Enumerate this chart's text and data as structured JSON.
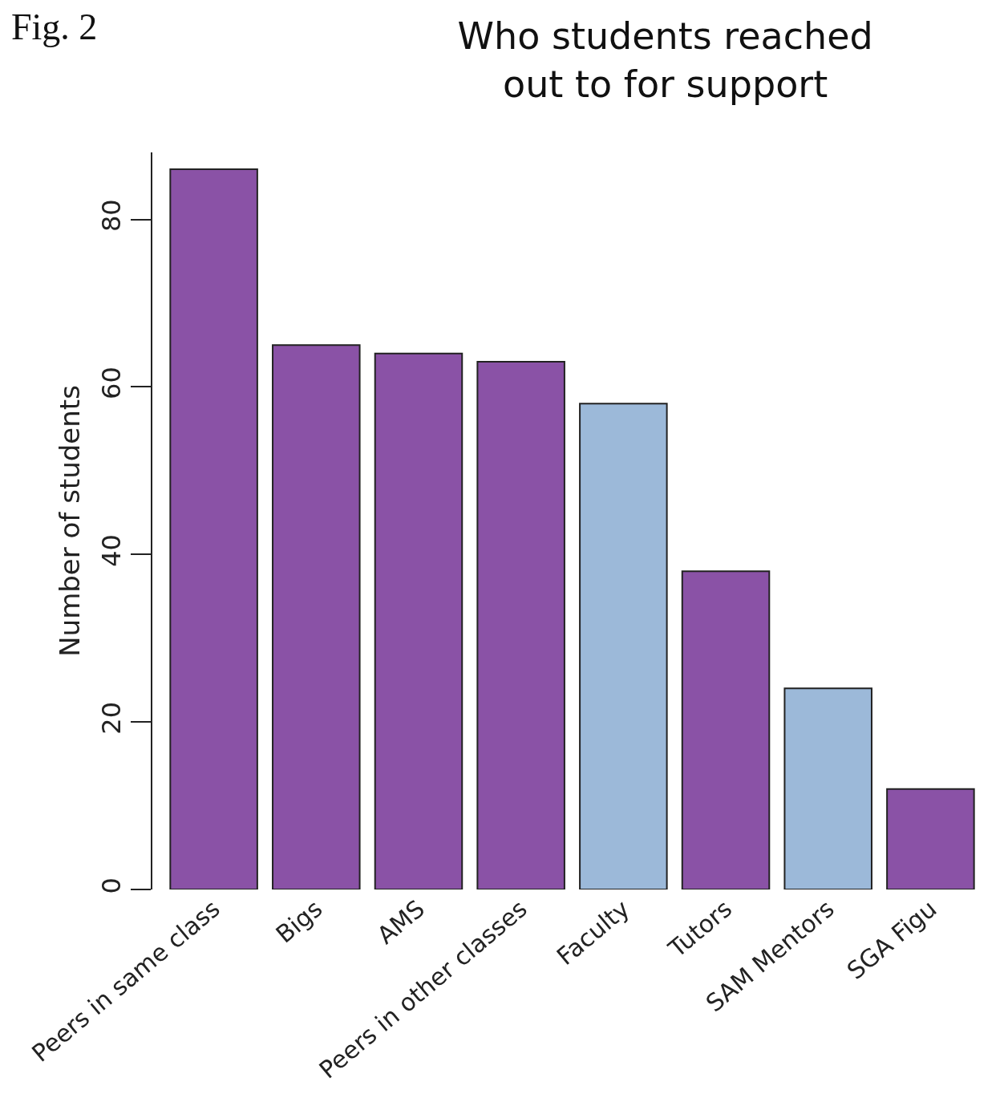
{
  "chart_data": {
    "type": "bar",
    "title": "Who students reached\nout to for support",
    "ylabel": "Number of students",
    "categories": [
      "Peers in same class",
      "Bigs",
      "AMS",
      "Peers in other classes",
      "Faculty",
      "Tutors",
      "SAM Mentors",
      "SGA Figu"
    ],
    "values": [
      86,
      65,
      64,
      63,
      58,
      38,
      24,
      12
    ],
    "colors": [
      "#8a52a6",
      "#8a52a6",
      "#8a52a6",
      "#8a52a6",
      "#9cb9d9",
      "#8a52a6",
      "#9cb9d9",
      "#8a52a6"
    ],
    "ylim": [
      0,
      88
    ],
    "yticks": [
      0,
      20,
      40,
      60,
      80
    ],
    "legend": false,
    "annotations": [
      "Fig. 2"
    ]
  }
}
